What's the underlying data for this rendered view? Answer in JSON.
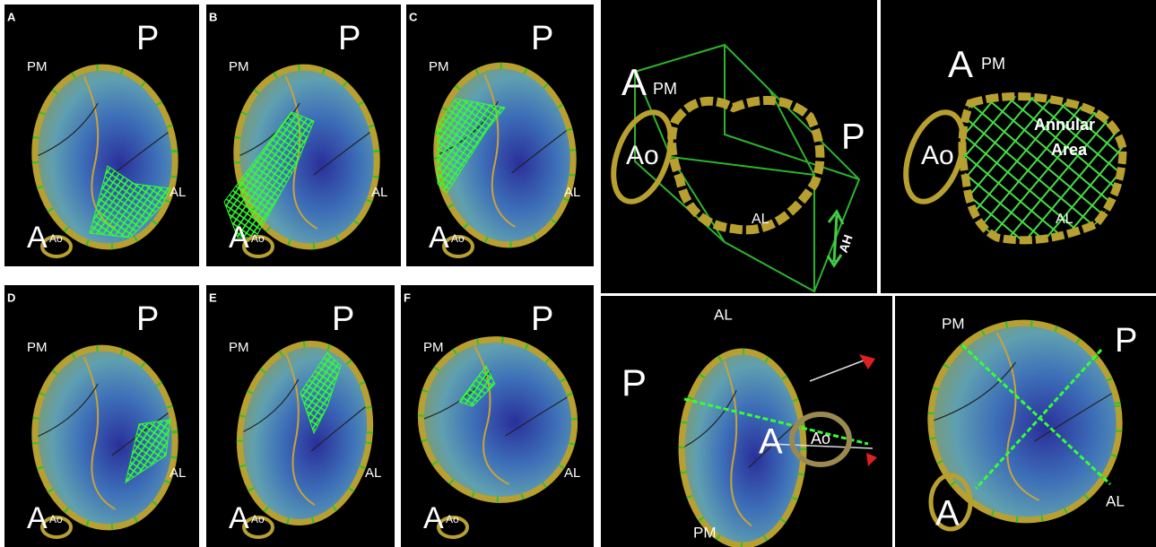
{
  "panels": [
    {
      "letter": "A",
      "top": "P",
      "left": "PM",
      "right": "AL",
      "bottom": "A",
      "ring": "Ao"
    },
    {
      "letter": "B",
      "top": "P",
      "left": "PM",
      "right": "AL",
      "bottom": "A",
      "ring": "Ao"
    },
    {
      "letter": "C",
      "top": "P",
      "left": "PM",
      "right": "AL",
      "bottom": "A",
      "ring": "Ao"
    },
    {
      "letter": "D",
      "top": "P",
      "left": "PM",
      "right": "AL",
      "bottom": "A",
      "ring": "Ao"
    },
    {
      "letter": "E",
      "top": "P",
      "left": "PM",
      "right": "AL",
      "bottom": "A",
      "ring": "Ao"
    },
    {
      "letter": "F",
      "top": "P",
      "left": "PM",
      "right": "AL",
      "bottom": "A",
      "ring": "Ao"
    }
  ],
  "views": {
    "box": {
      "anterior": "A",
      "pm": "PM",
      "aorta": "Ao",
      "posterior": "P",
      "lateral": "AL",
      "height": "AH"
    },
    "area": {
      "anterior": "A",
      "pm": "PM",
      "aorta": "Ao",
      "area_line1": "Annular",
      "area_line2": "Area",
      "lateral": "AL"
    },
    "side": {
      "lateral": "AL",
      "posterior": "P",
      "anterior": "A",
      "aorta": "Ao",
      "pm": "PM"
    },
    "en_face": {
      "pm": "PM",
      "posterior": "P",
      "anterior": "A",
      "lateral": "AL"
    }
  }
}
